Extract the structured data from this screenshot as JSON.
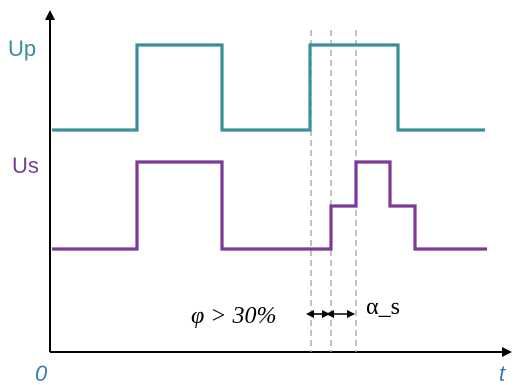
{
  "axes": {
    "origin_label": "0",
    "time_label": "t"
  },
  "signals": {
    "up": {
      "label": "Up",
      "color": "#3a8f9c"
    },
    "us": {
      "label": "Us",
      "color": "#7b3a96"
    }
  },
  "annotations": {
    "phase": "φ > 30%",
    "alpha": "α_s"
  },
  "colors": {
    "axis": "#000000",
    "dashed": "#a8a8a8",
    "arrows": "#000000",
    "origin_label": "#3a7cb4",
    "time_label": "#3a7cb4"
  }
}
